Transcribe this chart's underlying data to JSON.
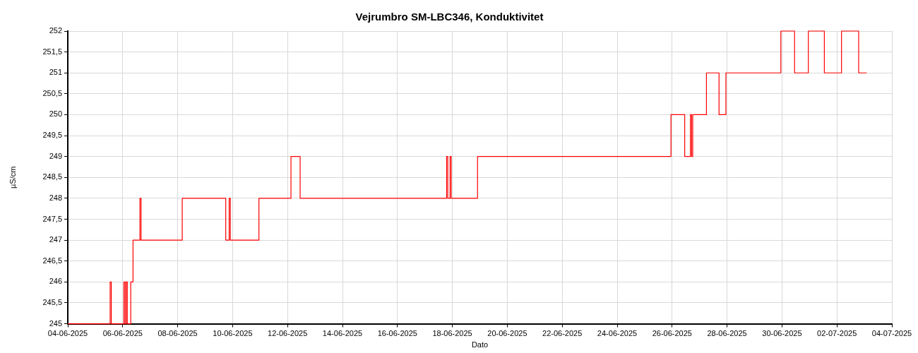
{
  "chart_data": {
    "type": "step",
    "title": "Vejrumbro SM-LBC346, Konduktivitet",
    "xlabel": "Dato",
    "ylabel": "µS/cm",
    "x": [
      "2025-06-04T00:00",
      "2025-06-05T13:00",
      "2025-06-05T14:00",
      "2025-06-06T01:00",
      "2025-06-06T02:00",
      "2025-06-06T03:00",
      "2025-06-06T04:00",
      "2025-06-06T07:00",
      "2025-06-06T09:00",
      "2025-06-06T15:00",
      "2025-06-06T16:00",
      "2025-06-08T04:00",
      "2025-06-09T18:00",
      "2025-06-09T21:00",
      "2025-06-09T22:00",
      "2025-06-10T23:00",
      "2025-06-12T03:00",
      "2025-06-12T11:00",
      "2025-06-17T19:00",
      "2025-06-17T20:00",
      "2025-06-17T22:00",
      "2025-06-17T23:00",
      "2025-06-18T22:00",
      "2025-06-25T23:00",
      "2025-06-26T11:00",
      "2025-06-26T16:00",
      "2025-06-26T17:00",
      "2025-06-26T18:00",
      "2025-06-27T06:00",
      "2025-06-27T17:00",
      "2025-06-27T23:00",
      "2025-06-29T23:00",
      "2025-06-30T11:00",
      "2025-06-30T23:00",
      "2025-07-01T13:00",
      "2025-07-02T04:00",
      "2025-07-02T19:00",
      "2025-07-03T02:00"
    ],
    "series": [
      {
        "color": "#ff0000",
        "values": [
          245,
          246,
          245,
          246,
          245,
          246,
          245,
          246,
          247,
          248,
          247,
          248,
          247,
          248,
          247,
          248,
          249,
          248,
          249,
          248,
          249,
          248,
          249,
          250,
          249,
          250,
          249,
          250,
          251,
          250,
          251,
          252,
          251,
          252,
          251,
          252,
          251,
          251
        ]
      }
    ],
    "xlim": [
      "2025-06-04",
      "2025-07-04"
    ],
    "xticks": [
      {
        "value": "2025-06-04",
        "label": "04-06-2025"
      },
      {
        "value": "2025-06-06",
        "label": "06-06-2025"
      },
      {
        "value": "2025-06-08",
        "label": "08-06-2025"
      },
      {
        "value": "2025-06-10",
        "label": "10-06-2025"
      },
      {
        "value": "2025-06-12",
        "label": "12-06-2025"
      },
      {
        "value": "2025-06-14",
        "label": "14-06-2025"
      },
      {
        "value": "2025-06-16",
        "label": "16-06-2025"
      },
      {
        "value": "2025-06-18",
        "label": "18-06-2025"
      },
      {
        "value": "2025-06-20",
        "label": "20-06-2025"
      },
      {
        "value": "2025-06-22",
        "label": "22-06-2025"
      },
      {
        "value": "2025-06-24",
        "label": "24-06-2025"
      },
      {
        "value": "2025-06-26",
        "label": "26-06-2025"
      },
      {
        "value": "2025-06-28",
        "label": "28-06-2025"
      },
      {
        "value": "2025-06-30",
        "label": "30-06-2025"
      },
      {
        "value": "2025-07-02",
        "label": "02-07-2025"
      },
      {
        "value": "2025-07-04",
        "label": "04-07-2025"
      }
    ],
    "ylim": [
      245,
      252
    ],
    "yticks": [
      245,
      {
        "value": 245.5,
        "label": "245,5"
      },
      246,
      {
        "value": 246.5,
        "label": "246,5"
      },
      247,
      {
        "value": 247.5,
        "label": "247,5"
      },
      248,
      {
        "value": 248.5,
        "label": "248,5"
      },
      249,
      {
        "value": 249.5,
        "label": "249,5"
      },
      250,
      {
        "value": 250.5,
        "label": "250,5"
      },
      251,
      {
        "value": 251.5,
        "label": "251,5"
      },
      252
    ],
    "grid": true,
    "legend": false,
    "marker": "none",
    "line_style": "solid"
  }
}
